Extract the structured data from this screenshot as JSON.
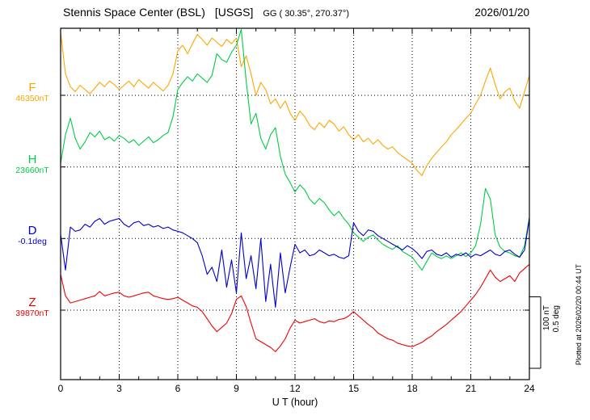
{
  "header": {
    "station_title": "Stennis Space Center (BSL)",
    "agency": "[USGS]",
    "geographic": "GG ( 30.35°, 270.37°)",
    "date": "2026/01/20"
  },
  "right_margin": {
    "plotted_at": "Plotted at 2026/02/20 00:44 UT",
    "scale_nt": "100 nT",
    "scale_deg": "0.5 deg"
  },
  "axes": {
    "x_label": "U T (hour)",
    "x_ticks": [
      "0",
      "3",
      "6",
      "9",
      "12",
      "15",
      "18",
      "21",
      "24"
    ]
  },
  "left_labels": [
    {
      "letter": "F",
      "value": "46350nT"
    },
    {
      "letter": "H",
      "value": "23660nT"
    },
    {
      "letter": "D",
      "value": "-0.1deg"
    },
    {
      "letter": "Z",
      "value": "39870nT"
    }
  ],
  "chart_data": {
    "type": "line",
    "title": "Stennis Space Center (BSL) [USGS] magnetogram, 2026/01/20",
    "xlabel": "U T (hour)",
    "x_range_hours": [
      0,
      24
    ],
    "x_tick_step_hours": 3,
    "sample_interval_hours": 0.25,
    "grid": "dotted",
    "scale_per_division": {
      "nT": 100,
      "deg": 0.5
    },
    "series": [
      {
        "name": "F",
        "unit": "nT",
        "baseline": 46350,
        "color": "#ffa500",
        "deviations": [
          88,
          30,
          12,
          5,
          14,
          8,
          2,
          10,
          18,
          12,
          20,
          15,
          8,
          14,
          20,
          12,
          22,
          16,
          10,
          18,
          12,
          6,
          14,
          30,
          62,
          70,
          58,
          72,
          85,
          78,
          70,
          80,
          74,
          68,
          78,
          72,
          80,
          40,
          55,
          30,
          0,
          18,
          8,
          -12,
          -5,
          -18,
          -8,
          -25,
          -35,
          -22,
          -30,
          -42,
          -48,
          -38,
          -45,
          -35,
          -40,
          -50,
          -44,
          -55,
          -62,
          -55,
          -65,
          -60,
          -68,
          -62,
          -70,
          -75,
          -72,
          -80,
          -85,
          -90,
          -95,
          -105,
          -112,
          -98,
          -88,
          -80,
          -72,
          -65,
          -55,
          -48,
          -40,
          -32,
          -25,
          -12,
          0,
          20,
          38,
          15,
          -5,
          5,
          10,
          -8,
          -18,
          5,
          28
        ]
      },
      {
        "name": "H",
        "unit": "nT",
        "baseline": 23660,
        "color": "#00cc44",
        "deviations": [
          5,
          45,
          68,
          40,
          25,
          35,
          48,
          42,
          50,
          38,
          42,
          36,
          44,
          40,
          34,
          38,
          30,
          36,
          42,
          34,
          38,
          44,
          48,
          70,
          108,
          118,
          126,
          120,
          130,
          124,
          118,
          128,
          158,
          150,
          146,
          160,
          170,
          192,
          120,
          60,
          75,
          40,
          25,
          45,
          55,
          15,
          -10,
          -22,
          -35,
          -25,
          -32,
          -45,
          -52,
          -44,
          -50,
          -60,
          -68,
          -62,
          -72,
          -80,
          -92,
          -98,
          -104,
          -98,
          -95,
          -102,
          -108,
          -112,
          -115,
          -110,
          -118,
          -122,
          -126,
          -135,
          -144,
          -132,
          -120,
          -125,
          -128,
          -124,
          -128,
          -124,
          -120,
          -125,
          -120,
          -110,
          -80,
          -30,
          -45,
          -95,
          -112,
          -118,
          -120,
          -124,
          -126,
          -110,
          -70
        ]
      },
      {
        "name": "D",
        "unit": "deg",
        "baseline": -0.1,
        "color": "#0000cc",
        "deviations": [
          0.03,
          -0.22,
          0.08,
          0.05,
          0.06,
          0.1,
          0.08,
          0.12,
          0.14,
          0.1,
          0.12,
          0.13,
          0.14,
          0.1,
          0.08,
          0.11,
          0.12,
          0.09,
          0.1,
          0.08,
          0.09,
          0.07,
          0.08,
          0.06,
          0.05,
          0.04,
          0.02,
          0.0,
          -0.03,
          -0.12,
          -0.25,
          -0.2,
          -0.3,
          -0.08,
          -0.34,
          -0.15,
          -0.38,
          0.04,
          -0.28,
          -0.12,
          -0.35,
          0.0,
          -0.44,
          -0.18,
          -0.48,
          -0.1,
          -0.38,
          -0.2,
          -0.04,
          -0.1,
          -0.08,
          -0.12,
          -0.11,
          -0.08,
          -0.1,
          -0.12,
          -0.11,
          -0.13,
          -0.14,
          -0.12,
          0.11,
          0.05,
          0.02,
          0.06,
          0.05,
          0.02,
          0.0,
          -0.02,
          -0.04,
          -0.06,
          -0.08,
          -0.05,
          -0.07,
          -0.1,
          -0.14,
          -0.09,
          -0.08,
          -0.11,
          -0.12,
          -0.1,
          -0.13,
          -0.11,
          -0.12,
          -0.1,
          -0.13,
          -0.11,
          -0.12,
          -0.1,
          -0.08,
          -0.11,
          -0.12,
          -0.09,
          -0.08,
          -0.11,
          -0.13,
          -0.08,
          0.14
        ]
      },
      {
        "name": "Z",
        "unit": "nT",
        "baseline": 39870,
        "color": "#ee0000",
        "deviations": [
          50,
          20,
          10,
          12,
          14,
          16,
          18,
          20,
          26,
          20,
          22,
          24,
          25,
          20,
          18,
          20,
          22,
          24,
          25,
          20,
          18,
          16,
          15,
          16,
          18,
          14,
          10,
          6,
          4,
          -2,
          -12,
          -22,
          -30,
          -24,
          -18,
          -5,
          15,
          20,
          5,
          -18,
          -40,
          -44,
          -48,
          -52,
          -58,
          -50,
          -40,
          -25,
          -14,
          -18,
          -16,
          -14,
          -12,
          -16,
          -18,
          -15,
          -16,
          -13,
          -12,
          -8,
          -2,
          -8,
          -14,
          -20,
          -25,
          -32,
          -36,
          -40,
          -42,
          -46,
          -48,
          -50,
          -51,
          -48,
          -45,
          -40,
          -36,
          -30,
          -25,
          -20,
          -14,
          -8,
          -2,
          6,
          14,
          22,
          32,
          44,
          56,
          46,
          40,
          44,
          48,
          40,
          52,
          58,
          64
        ]
      }
    ]
  }
}
